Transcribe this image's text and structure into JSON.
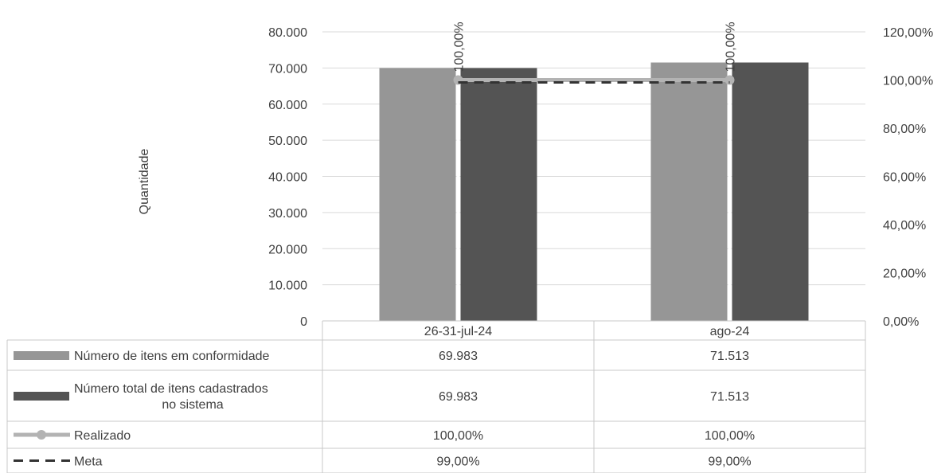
{
  "chart_data": {
    "type": "bar",
    "categories": [
      "26-31-jul-24",
      "ago-24"
    ],
    "ylabel": "Quantidade",
    "ylim": [
      0,
      80000
    ],
    "y2lim": [
      0,
      1.2
    ],
    "y_ticks": [
      "0",
      "10.000",
      "20.000",
      "30.000",
      "40.000",
      "50.000",
      "60.000",
      "70.000",
      "80.000"
    ],
    "y2_ticks": [
      "0,00%",
      "20,00%",
      "40,00%",
      "60,00%",
      "80,00%",
      "100,00%",
      "120,00%"
    ],
    "grid": true,
    "legend": "data-table",
    "series": [
      {
        "name": "Número de itens em conformidade",
        "type": "bar",
        "axis": "left",
        "color": "#969696",
        "values": [
          69983,
          71513
        ],
        "labels": [
          "69.983",
          "71.513"
        ]
      },
      {
        "name": "Número total de itens cadastrados no sistema",
        "type": "bar",
        "axis": "left",
        "color": "#545454",
        "values": [
          69983,
          71513
        ],
        "labels": [
          "69.983",
          "71.513"
        ]
      },
      {
        "name": "Realizado",
        "type": "line",
        "axis": "right",
        "color": "#b3b3b3",
        "values": [
          1.0,
          1.0
        ],
        "labels": [
          "100,00%",
          "100,00%"
        ]
      },
      {
        "name": "Meta",
        "type": "line",
        "axis": "right",
        "color": "#333333",
        "dash": true,
        "values": [
          0.99,
          0.99
        ],
        "labels": [
          "99,00%",
          "99,00%"
        ]
      }
    ],
    "data_labels": [
      "100,00%",
      "100,00%"
    ]
  }
}
